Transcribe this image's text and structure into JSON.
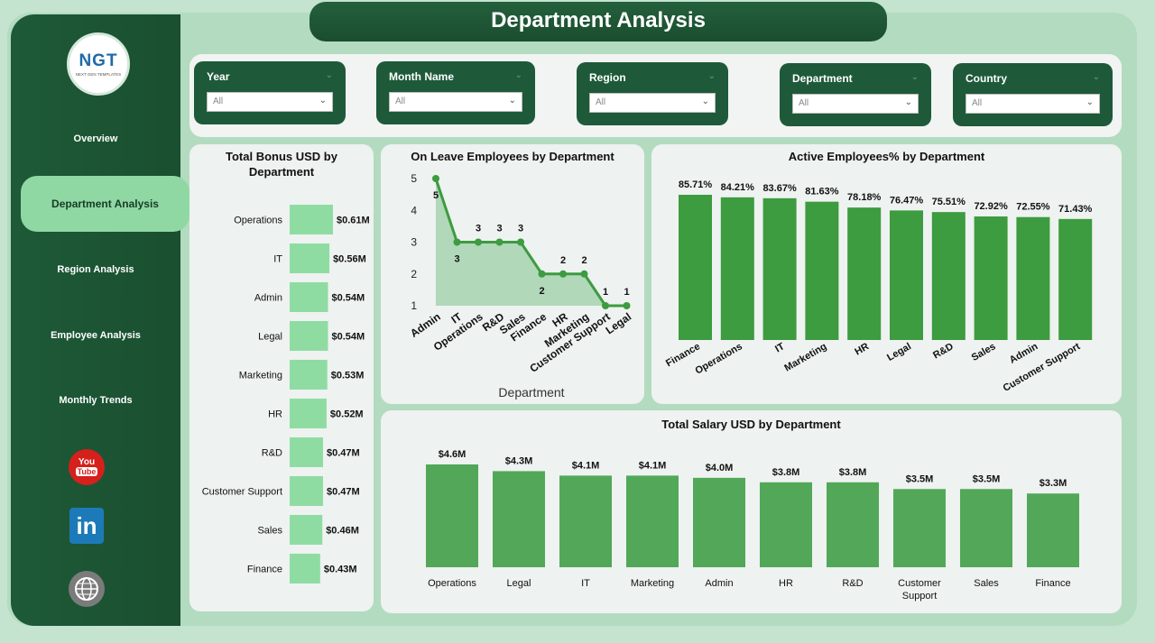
{
  "page_title": "Department Analysis",
  "logo": {
    "text": "NGT",
    "sub": "NEXT GEN TEMPLATES"
  },
  "nav": {
    "overview": "Overview",
    "department": "Department Analysis",
    "region": "Region Analysis",
    "employee": "Employee Analysis",
    "monthly": "Monthly Trends"
  },
  "social": {
    "youtube_top": "You",
    "youtube_bottom": "Tube",
    "linkedin": "in"
  },
  "filters": [
    {
      "label": "Year",
      "value": "All"
    },
    {
      "label": "Month Name",
      "value": "All"
    },
    {
      "label": "Region",
      "value": "All"
    },
    {
      "label": "Department",
      "value": "All"
    },
    {
      "label": "Country",
      "value": "All"
    }
  ],
  "colors": {
    "sidebar": "#1e5a37",
    "light_bar": "#8fdca3",
    "dark_bar": "#3d9b40",
    "mid_bar": "#52a858",
    "line": "#3d9b40"
  },
  "chart_data": [
    {
      "type": "bar",
      "orientation": "horizontal",
      "title": "Total Bonus USD by Department",
      "categories": [
        "Operations",
        "IT",
        "Admin",
        "Legal",
        "Marketing",
        "HR",
        "R&D",
        "Customer Support",
        "Sales",
        "Finance"
      ],
      "values": [
        0.61,
        0.56,
        0.54,
        0.54,
        0.53,
        0.52,
        0.47,
        0.47,
        0.46,
        0.43
      ],
      "labels": [
        "$0.61M",
        "$0.56M",
        "$0.54M",
        "$0.54M",
        "$0.53M",
        "$0.52M",
        "$0.47M",
        "$0.47M",
        "$0.46M",
        "$0.43M"
      ]
    },
    {
      "type": "area",
      "title": "On Leave Employees by Department",
      "xlabel": "Department",
      "categories": [
        "Admin",
        "IT",
        "Operations",
        "R&D",
        "Sales",
        "Finance",
        "HR",
        "Marketing",
        "Customer Support",
        "Legal"
      ],
      "values": [
        5,
        3,
        3,
        3,
        3,
        2,
        2,
        2,
        1,
        1
      ],
      "ylim": [
        1,
        5
      ],
      "yticks": [
        "1",
        "2",
        "3",
        "4",
        "5"
      ]
    },
    {
      "type": "bar",
      "title": "Active Employees% by Department",
      "categories": [
        "Finance",
        "Operations",
        "IT",
        "Marketing",
        "HR",
        "Legal",
        "R&D",
        "Sales",
        "Admin",
        "Customer Support"
      ],
      "values": [
        85.71,
        84.21,
        83.67,
        81.63,
        78.18,
        76.47,
        75.51,
        72.92,
        72.55,
        71.43
      ],
      "labels": [
        "85.71%",
        "84.21%",
        "83.67%",
        "81.63%",
        "78.18%",
        "76.47%",
        "75.51%",
        "72.92%",
        "72.55%",
        "71.43%"
      ]
    },
    {
      "type": "bar",
      "title": "Total Salary USD by Department",
      "categories": [
        "Operations",
        "Legal",
        "IT",
        "Marketing",
        "Admin",
        "HR",
        "R&D",
        "Customer Support",
        "Sales",
        "Finance"
      ],
      "values": [
        4.6,
        4.3,
        4.1,
        4.1,
        4.0,
        3.8,
        3.8,
        3.5,
        3.5,
        3.3
      ],
      "labels": [
        "$4.6M",
        "$4.3M",
        "$4.1M",
        "$4.1M",
        "$4.0M",
        "$3.8M",
        "$3.8M",
        "$3.5M",
        "$3.5M",
        "$3.3M"
      ]
    }
  ]
}
